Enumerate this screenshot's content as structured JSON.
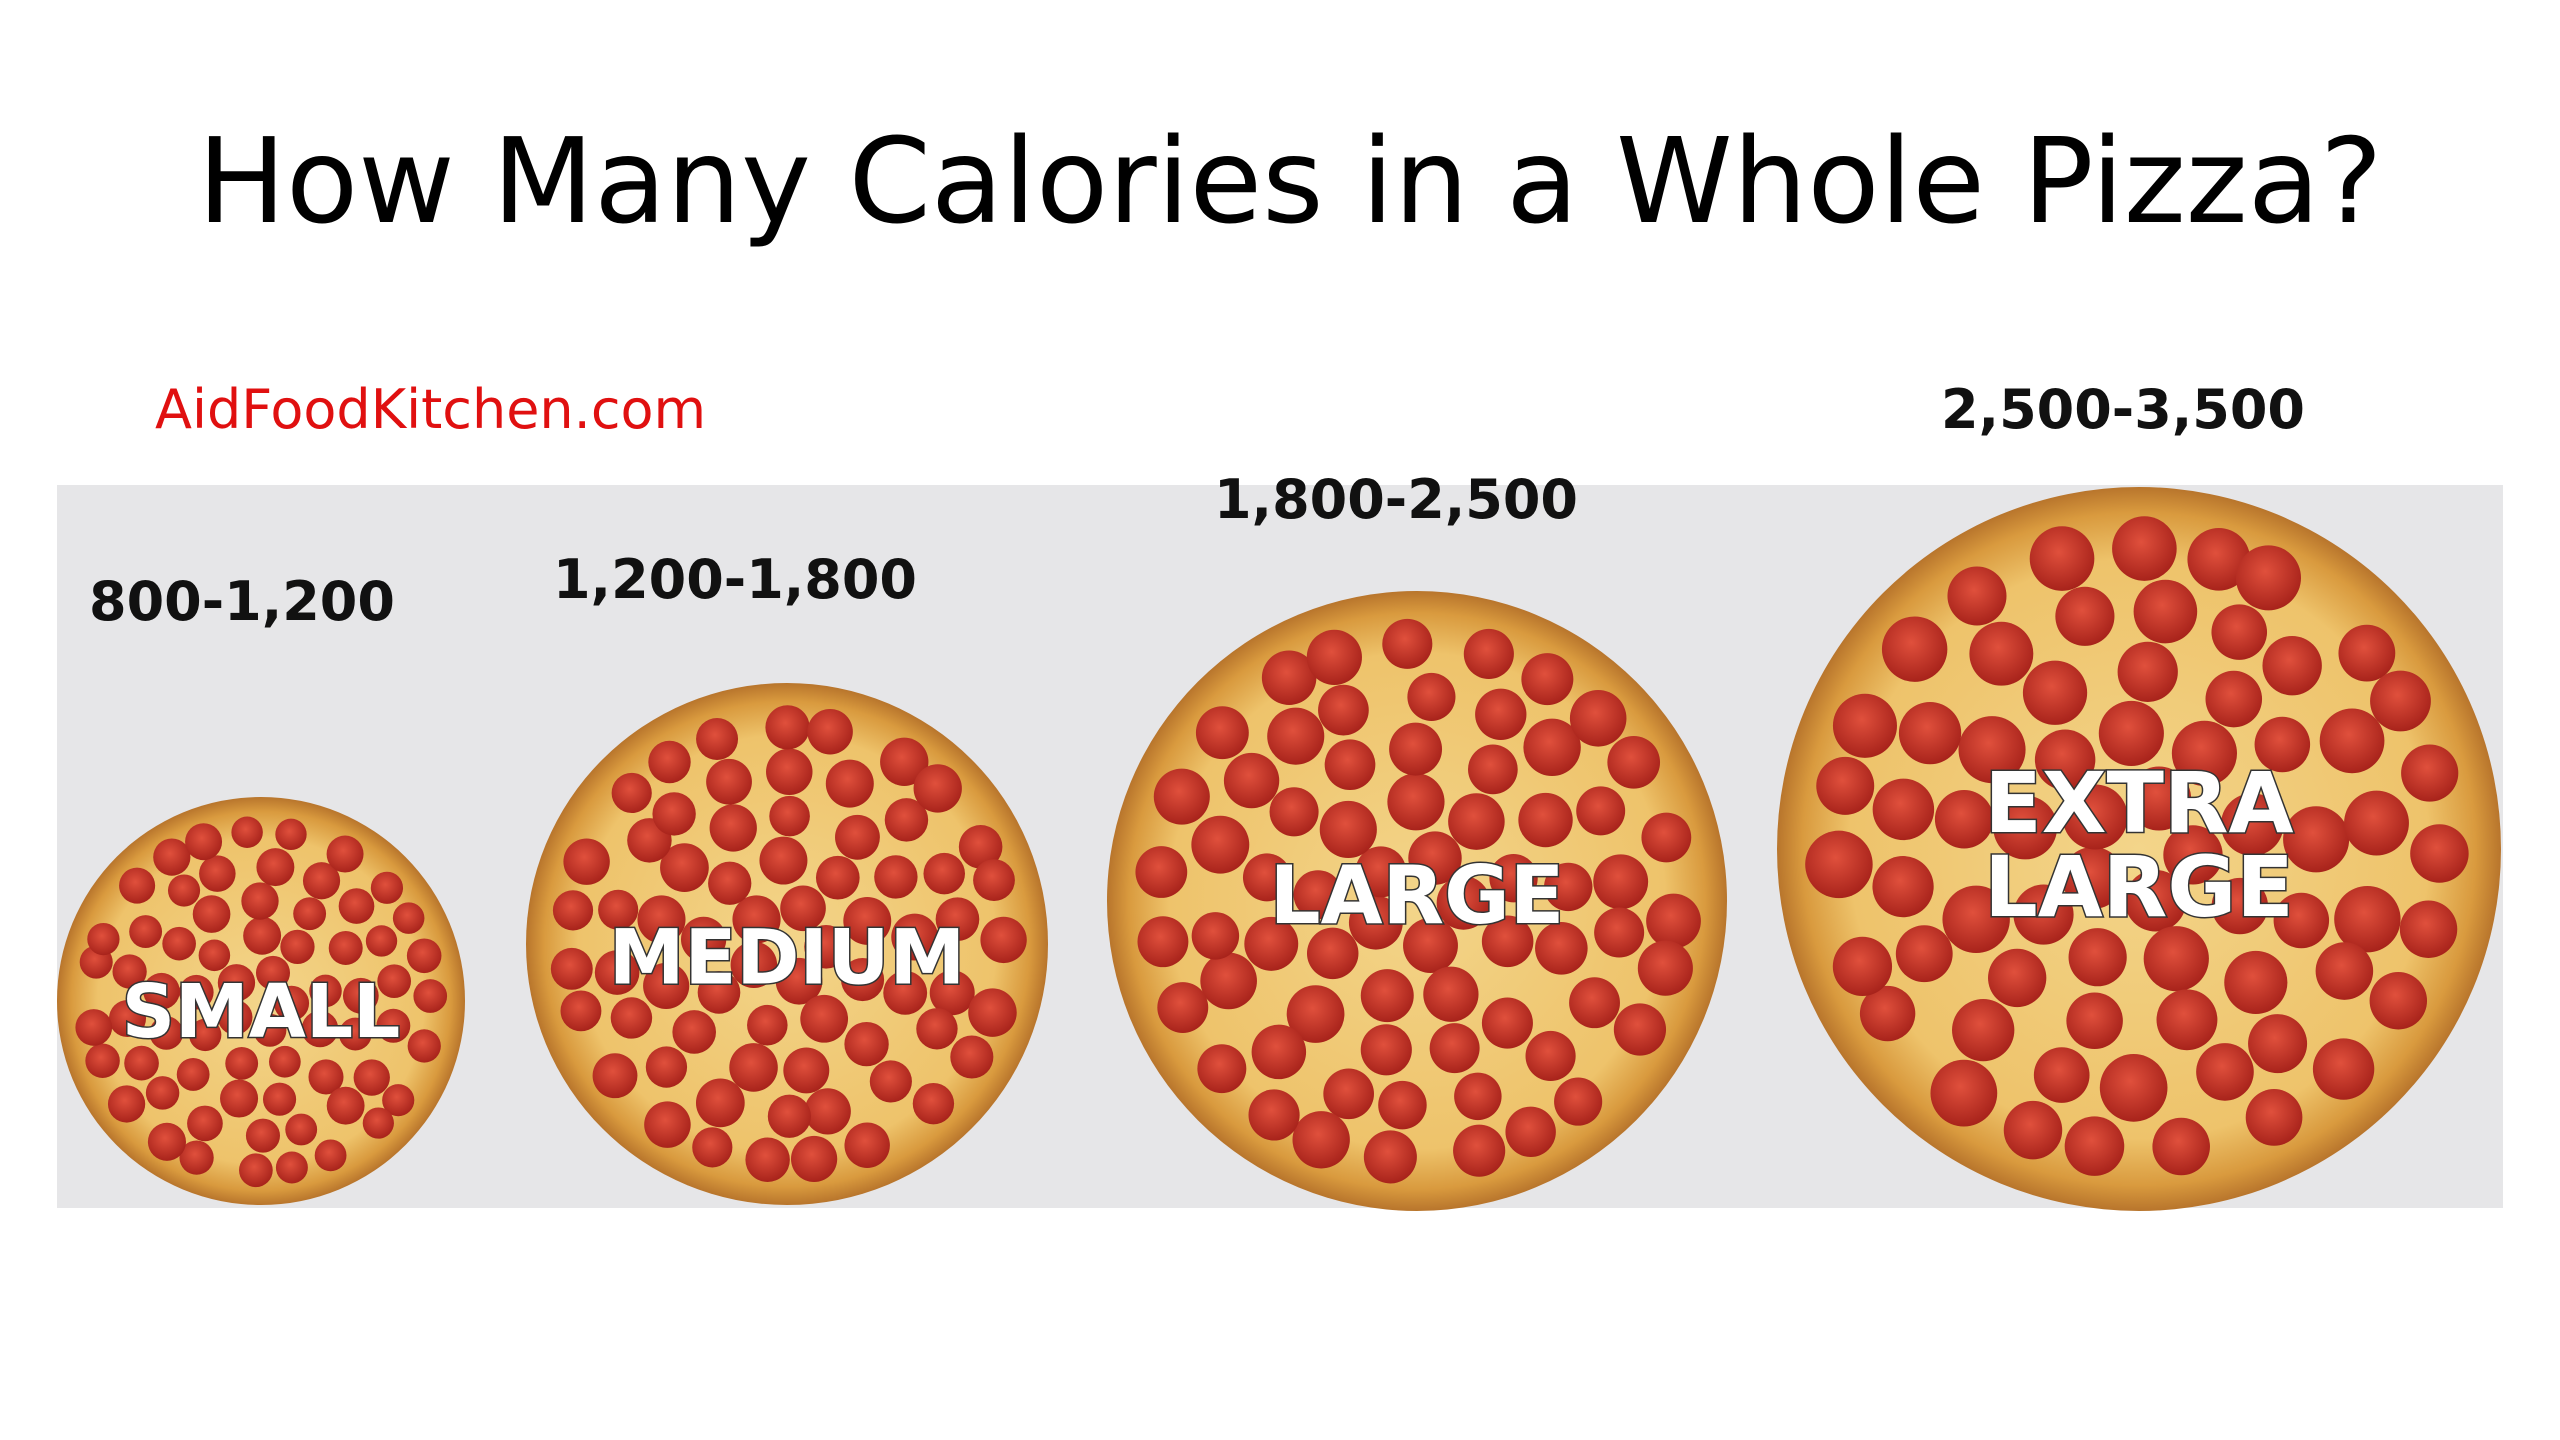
{
  "title": "How Many Calories in a Whole Pizza?",
  "source": "AidFoodKitchen.com",
  "pizzas": [
    {
      "calories": "800-1,200",
      "label": "SMALL"
    },
    {
      "calories": "1,200-1,800",
      "label": "MEDIUM"
    },
    {
      "calories": "1,800-2,500",
      "label": "LARGE"
    },
    {
      "calories": "2,500-3,500",
      "label": "EXTRA LARGE"
    }
  ]
}
